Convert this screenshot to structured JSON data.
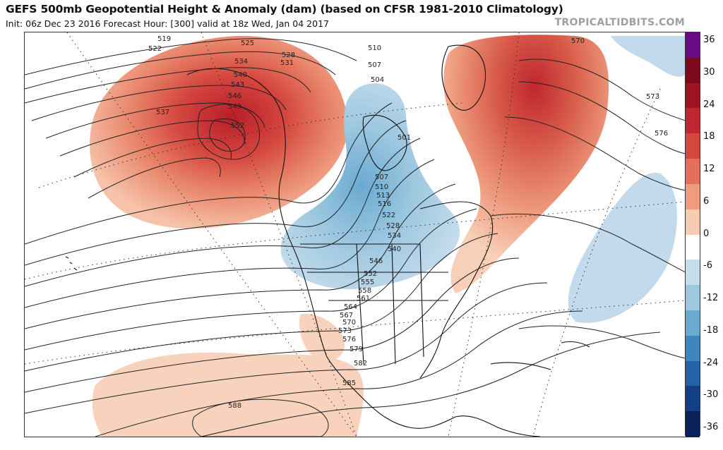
{
  "header": {
    "title": "GEFS 500mb Geopotential Height & Anomaly (dam) (based on CFSR 1981-2010 Climatology)",
    "subtitle": "Init: 06z Dec 23 2016   Forecast Hour: [300]   valid at 18z Wed, Jan 04 2017",
    "brand": "TROPICALTIDBITS.COM"
  },
  "colorbar": {
    "labels": [
      "36",
      "30",
      "24",
      "18",
      "12",
      "6",
      "0",
      "-6",
      "-12",
      "-18",
      "-24",
      "-30",
      "-36"
    ],
    "colors": [
      "#6a0a84",
      "#7a0a1c",
      "#9e1420",
      "#c02630",
      "#d4473f",
      "#e2705a",
      "#ee9b7e",
      "#f8cbb3",
      "#ffffff",
      "#c6dded",
      "#9ec8e0",
      "#6aaad0",
      "#3d86bf",
      "#2262a6",
      "#133f85",
      "#0a2058"
    ]
  },
  "map": {
    "contour_labels": [
      "519",
      "522",
      "525",
      "528",
      "531",
      "534",
      "537",
      "540",
      "543",
      "546",
      "549",
      "552",
      "510",
      "507",
      "504",
      "501",
      "507",
      "510",
      "513",
      "516",
      "522",
      "528",
      "534",
      "540",
      "546",
      "552",
      "555",
      "558",
      "561",
      "564",
      "567",
      "570",
      "573",
      "576",
      "579",
      "582",
      "585",
      "588",
      "570",
      "573",
      "576"
    ]
  }
}
